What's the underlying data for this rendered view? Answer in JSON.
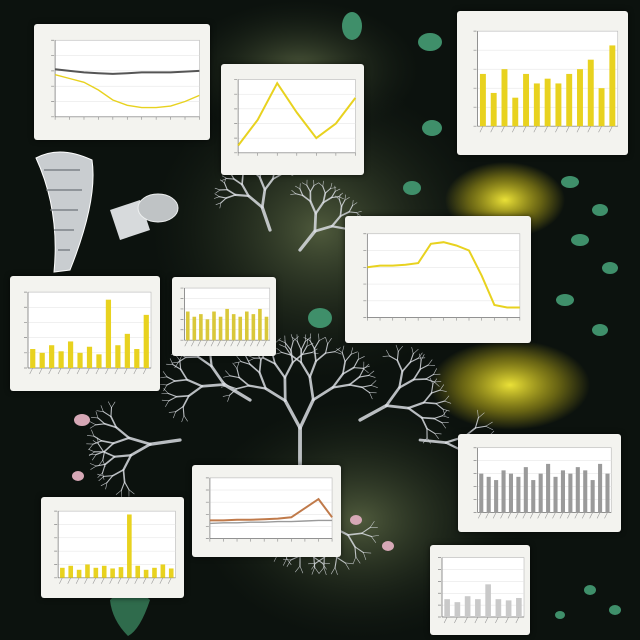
{
  "palette": {
    "background": "#0c120e",
    "card": "#f3f3ef",
    "accent_yellow": "#e8d21f",
    "bar_grey": "#9a9a9a",
    "vein_white": "#d8dce0",
    "leaf_green": "#3f8f6a"
  },
  "chart_data": [
    {
      "type": "line",
      "x": [
        0,
        1,
        2,
        3,
        4,
        5,
        6,
        7,
        8,
        9,
        10
      ],
      "series": [
        {
          "values": [
            0.62,
            0.6,
            0.58,
            0.57,
            0.56,
            0.57,
            0.58,
            0.58,
            0.58,
            0.59,
            0.6
          ]
        },
        {
          "values": [
            0.55,
            0.5,
            0.45,
            0.35,
            0.22,
            0.15,
            0.12,
            0.12,
            0.14,
            0.2,
            0.28
          ]
        }
      ],
      "ylim": [
        0,
        1
      ],
      "grid": true
    },
    {
      "type": "line",
      "x": [
        0,
        1,
        2,
        3,
        4,
        5,
        6
      ],
      "series": [
        {
          "values": [
            0.1,
            0.45,
            0.95,
            0.55,
            0.2,
            0.4,
            0.75
          ]
        }
      ],
      "ylim": [
        0,
        1
      ],
      "grid": true
    },
    {
      "type": "bar",
      "values": [
        0.55,
        0.35,
        0.6,
        0.3,
        0.55,
        0.45,
        0.5,
        0.45,
        0.55,
        0.6,
        0.7,
        0.4,
        0.85
      ],
      "ylim": [
        0,
        1
      ],
      "grid": true
    },
    {
      "type": "line",
      "x": [
        0,
        1,
        2,
        3,
        4,
        5,
        6,
        7,
        8,
        9,
        10,
        11,
        12
      ],
      "series": [
        {
          "values": [
            0.6,
            0.62,
            0.62,
            0.63,
            0.65,
            0.88,
            0.9,
            0.86,
            0.8,
            0.5,
            0.15,
            0.12,
            0.12
          ]
        }
      ],
      "ylim": [
        0,
        1
      ],
      "grid": true
    },
    {
      "type": "bar",
      "values": [
        0.25,
        0.2,
        0.3,
        0.22,
        0.35,
        0.2,
        0.28,
        0.18,
        0.9,
        0.3,
        0.45,
        0.25,
        0.7
      ],
      "ylim": [
        0,
        1
      ],
      "grid": true
    },
    {
      "type": "bar",
      "values": [
        0.55,
        0.45,
        0.5,
        0.4,
        0.55,
        0.45,
        0.6,
        0.5,
        0.45,
        0.55,
        0.5,
        0.6,
        0.45
      ],
      "ylim": [
        0,
        1
      ],
      "grid": true
    },
    {
      "type": "bar",
      "values": [
        0.6,
        0.55,
        0.5,
        0.65,
        0.6,
        0.55,
        0.7,
        0.5,
        0.6,
        0.75,
        0.55,
        0.65,
        0.6,
        0.7,
        0.65,
        0.5,
        0.75,
        0.6
      ],
      "ylim": [
        0,
        1
      ],
      "grid": true
    },
    {
      "type": "line",
      "x": [
        0,
        1,
        2,
        3,
        4,
        5,
        6,
        7,
        8,
        9
      ],
      "series": [
        {
          "values": [
            0.3,
            0.3,
            0.31,
            0.31,
            0.32,
            0.33,
            0.35,
            0.5,
            0.65,
            0.35
          ]
        },
        {
          "values": [
            0.25,
            0.26,
            0.26,
            0.27,
            0.27,
            0.28,
            0.28,
            0.29,
            0.3,
            0.3
          ]
        }
      ],
      "ylim": [
        0,
        1
      ],
      "grid": true
    },
    {
      "type": "bar",
      "values": [
        0.15,
        0.18,
        0.12,
        0.2,
        0.15,
        0.18,
        0.14,
        0.16,
        0.95,
        0.18,
        0.12,
        0.15,
        0.2,
        0.14
      ],
      "ylim": [
        0,
        1
      ],
      "grid": true
    },
    {
      "type": "bar",
      "values": [
        0.3,
        0.25,
        0.35,
        0.3,
        0.55,
        0.3,
        0.28,
        0.32
      ],
      "ylim": [
        0,
        1
      ],
      "grid": true
    }
  ]
}
